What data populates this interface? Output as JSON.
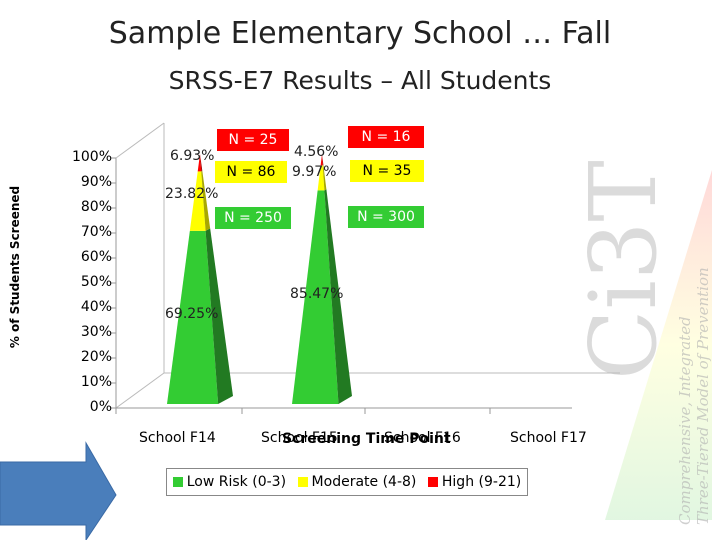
{
  "title": "Sample Elementary School … Fall",
  "subtitle": "SRSS-E7 Results – All Students",
  "watermark": {
    "text": "Ci3T",
    "lines": [
      "Comprehensive, Integrated",
      "Three-Tiered Model of Prevention"
    ]
  },
  "chart_data": {
    "type": "bar",
    "ylabel": "% of Students Screened",
    "xlabel": "Screening Time Point",
    "yticks": [
      "100%",
      "90%",
      "80%",
      "70%",
      "60%",
      "50%",
      "40%",
      "30%",
      "20%",
      "10%",
      "0%"
    ],
    "categories": [
      "School F14",
      "School F15",
      "School F16",
      "School F17"
    ],
    "series": [
      {
        "name": "Low Risk (0-3)",
        "color": "#33cc33",
        "values": [
          69.25,
          85.47,
          null,
          null
        ],
        "labels": [
          "69.25%",
          "85.47%",
          "",
          ""
        ],
        "n_labels": [
          "N = 250",
          "N = 300",
          "",
          ""
        ]
      },
      {
        "name": "Moderate (4-8)",
        "color": "#ffff00",
        "values": [
          23.82,
          9.97,
          null,
          null
        ],
        "labels": [
          "23.82%",
          "9.97%",
          "",
          ""
        ],
        "n_labels": [
          "N = 86",
          "N = 35",
          "",
          ""
        ]
      },
      {
        "name": "High (9-21)",
        "color": "#ff0000",
        "values": [
          6.93,
          4.56,
          null,
          null
        ],
        "labels": [
          "6.93%",
          "4.56%",
          "",
          ""
        ],
        "n_labels": [
          "N = 25",
          "N = 16",
          "",
          ""
        ]
      }
    ],
    "ylim": [
      0,
      100
    ],
    "legend": "bottom"
  }
}
